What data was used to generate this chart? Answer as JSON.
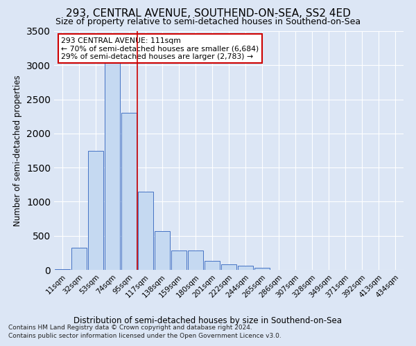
{
  "title": "293, CENTRAL AVENUE, SOUTHEND-ON-SEA, SS2 4ED",
  "subtitle": "Size of property relative to semi-detached houses in Southend-on-Sea",
  "xlabel": "Distribution of semi-detached houses by size in Southend-on-Sea",
  "ylabel": "Number of semi-detached properties",
  "categories": [
    "11sqm",
    "32sqm",
    "53sqm",
    "74sqm",
    "95sqm",
    "117sqm",
    "138sqm",
    "159sqm",
    "180sqm",
    "201sqm",
    "222sqm",
    "244sqm",
    "265sqm",
    "286sqm",
    "307sqm",
    "328sqm",
    "349sqm",
    "371sqm",
    "392sqm",
    "413sqm",
    "434sqm"
  ],
  "values": [
    10,
    320,
    1750,
    3050,
    2300,
    1150,
    570,
    280,
    280,
    130,
    80,
    60,
    30,
    0,
    0,
    0,
    0,
    0,
    0,
    0,
    0
  ],
  "bar_color": "#c5d9f1",
  "bar_edge_color": "#4472c4",
  "vline_x": 4.5,
  "annotation_text": "293 CENTRAL AVENUE: 111sqm\n← 70% of semi-detached houses are smaller (6,684)\n29% of semi-detached houses are larger (2,783) →",
  "annotation_box_color": "#ffffff",
  "annotation_box_edge": "#cc0000",
  "vline_color": "#cc0000",
  "ylim": [
    0,
    3500
  ],
  "yticks": [
    0,
    500,
    1000,
    1500,
    2000,
    2500,
    3000,
    3500
  ],
  "background_color": "#dce6f5",
  "grid_color": "#ffffff",
  "title_fontsize": 11,
  "subtitle_fontsize": 9,
  "footer1": "Contains HM Land Registry data © Crown copyright and database right 2024.",
  "footer2": "Contains public sector information licensed under the Open Government Licence v3.0."
}
